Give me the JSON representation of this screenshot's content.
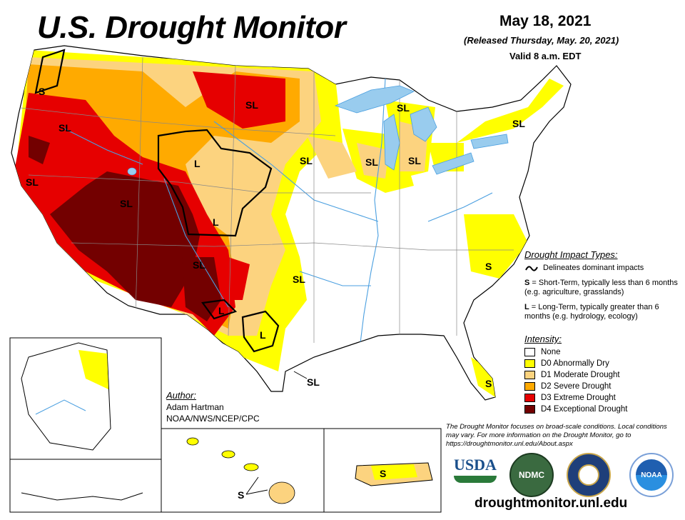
{
  "header": {
    "title": "U.S. Drought Monitor",
    "date": "May 18, 2021",
    "released": "(Released Thursday, May. 20, 2021)",
    "valid": "Valid 8 a.m. EDT"
  },
  "map_labels": {
    "s_oregon": "S",
    "sl_oregon": "SL",
    "sl_california": "SL",
    "l_wyoming": "L",
    "l_colorado": "L",
    "sl_nevada": "SL",
    "sl_dakota": "SL",
    "sl_kansas": "SL",
    "sl_iowa": "SL",
    "sl_superior": "SL",
    "sl_michigan": "SL",
    "sl_maine": "SL",
    "sl_newmexico": "SL",
    "l_texas_w": "L",
    "l_texas": "L",
    "sl_oklahoma": "SL",
    "sl_gulf": "SL",
    "s_carolina": "S",
    "s_florida": "S",
    "s_hawaii": "S",
    "s_puertorico": "S"
  },
  "impact_types": {
    "header": "Drought Impact Types:",
    "delineates": "Delineates dominant impacts",
    "s_key": "S",
    "s_text": "= Short-Term, typically less than 6 months (e.g. agriculture, grasslands)",
    "l_key": "L",
    "l_text": "= Long-Term, typically greater than 6 months (e.g. hydrology, ecology)"
  },
  "intensity": {
    "header": "Intensity:",
    "items": [
      {
        "label": "None",
        "color": "#ffffff"
      },
      {
        "label": "D0 Abnormally Dry",
        "color": "#ffff00"
      },
      {
        "label": "D1 Moderate Drought",
        "color": "#fcd37f"
      },
      {
        "label": "D2 Severe Drought",
        "color": "#ffaa00"
      },
      {
        "label": "D3 Extreme Drought",
        "color": "#e60000"
      },
      {
        "label": "D4 Exceptional Drought",
        "color": "#730000"
      }
    ]
  },
  "author": {
    "header": "Author:",
    "name": "Adam Hartman",
    "org": "NOAA/NWS/NCEP/CPC"
  },
  "note": "The Drought Monitor focuses on broad-scale conditions. Local conditions may vary. For more information on the Drought Monitor, go to https://droughtmonitor.unl.edu/About.aspx",
  "logos": {
    "usda": "USDA",
    "ndmc": "NDMC",
    "noaa": "NOAA"
  },
  "url": "droughtmonitor.unl.edu",
  "colors": {
    "water": "#99ccee",
    "river": "#4a9fe0"
  }
}
